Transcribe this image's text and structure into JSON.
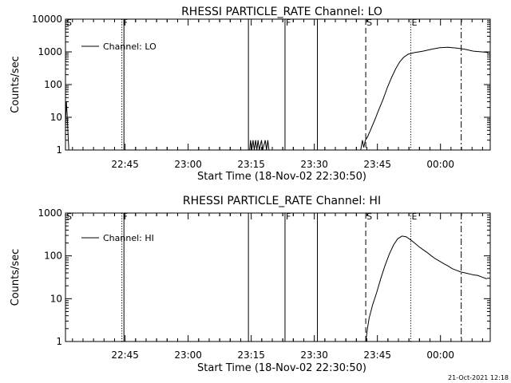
{
  "footer": {
    "timestamp": "21-Oct-2021 12:18"
  },
  "chart_data": [
    {
      "type": "line",
      "title": "RHESSI PARTICLE_RATE Channel: LO",
      "xlabel": "Start Time (18-Nov-02 22:30:50)",
      "ylabel": "Counts/sec",
      "yscale": "log",
      "ylim": [
        1,
        10000
      ],
      "ytick_labels": [
        "1",
        "10",
        "100",
        "1000",
        "10000"
      ],
      "xtick_labels": [
        "22:45",
        "23:00",
        "23:15",
        "23:30",
        "23:45",
        "00:00"
      ],
      "xtick_minutes": [
        14.17,
        29.17,
        44.17,
        59.17,
        74.17,
        89.17
      ],
      "xlim_minutes": [
        0,
        101
      ],
      "grid": false,
      "legend_position": "top-left",
      "series": [
        {
          "name": "Channel: LO",
          "points": [
            [
              0.0,
              6
            ],
            [
              0.2,
              30
            ],
            [
              0.4,
              12
            ],
            [
              0.6,
              3
            ],
            [
              0.8,
              1
            ],
            [
              43.8,
              1
            ],
            [
              44.0,
              2
            ],
            [
              44.3,
              1
            ],
            [
              44.6,
              2
            ],
            [
              44.9,
              1
            ],
            [
              45.2,
              2
            ],
            [
              45.5,
              1
            ],
            [
              45.8,
              2
            ],
            [
              46.1,
              1
            ],
            [
              46.6,
              2
            ],
            [
              46.9,
              1
            ],
            [
              47.5,
              2
            ],
            [
              47.8,
              1
            ],
            [
              48.1,
              2
            ],
            [
              48.4,
              1
            ],
            [
              70.2,
              1
            ],
            [
              70.6,
              2
            ],
            [
              70.9,
              1.2
            ],
            [
              71.3,
              2
            ],
            [
              71.8,
              2.5
            ],
            [
              72.5,
              4
            ],
            [
              73.5,
              8
            ],
            [
              74.5,
              17
            ],
            [
              75.5,
              35
            ],
            [
              76.5,
              80
            ],
            [
              77.5,
              160
            ],
            [
              78.5,
              300
            ],
            [
              79.5,
              500
            ],
            [
              80.5,
              700
            ],
            [
              81.5,
              850
            ],
            [
              83,
              950
            ],
            [
              85,
              1050
            ],
            [
              87,
              1200
            ],
            [
              89,
              1350
            ],
            [
              91,
              1380
            ],
            [
              93,
              1300
            ],
            [
              95,
              1200
            ],
            [
              97,
              1050
            ],
            [
              99,
              1000
            ],
            [
              100.5,
              960
            ]
          ]
        }
      ],
      "markers": [
        {
          "label": "S",
          "minute": 0.0,
          "style": "solid"
        },
        {
          "label": "F",
          "minute": 13.4,
          "style": "dotted"
        },
        {
          "minute": 13.9,
          "style": "solid"
        },
        {
          "minute": 43.5,
          "style": "solid"
        },
        {
          "minute": 52.2,
          "style": "solid"
        },
        {
          "label": "F",
          "minute": 52.2,
          "style": "none"
        },
        {
          "minute": 59.9,
          "style": "solid"
        },
        {
          "label": "S",
          "minute": 71.4,
          "style": "dashed"
        },
        {
          "label": "E",
          "minute": 82.1,
          "style": "dotted"
        },
        {
          "minute": 94.1,
          "style": "dashdot"
        }
      ]
    },
    {
      "type": "line",
      "title": "RHESSI PARTICLE_RATE Channel: HI",
      "xlabel": "Start Time (18-Nov-02 22:30:50)",
      "ylabel": "Counts/sec",
      "yscale": "log",
      "ylim": [
        1,
        1000
      ],
      "ytick_labels": [
        "1",
        "10",
        "100",
        "1000"
      ],
      "xtick_labels": [
        "22:45",
        "23:00",
        "23:15",
        "23:30",
        "23:45",
        "00:00"
      ],
      "xtick_minutes": [
        14.17,
        29.17,
        44.17,
        59.17,
        74.17,
        89.17
      ],
      "xlim_minutes": [
        0,
        101
      ],
      "grid": false,
      "legend_position": "top-left",
      "series": [
        {
          "name": "Channel: HI",
          "points": [
            [
              71.4,
              1
            ],
            [
              71.8,
              2
            ],
            [
              72.2,
              3.5
            ],
            [
              73,
              7
            ],
            [
              74,
              14
            ],
            [
              75,
              30
            ],
            [
              76,
              60
            ],
            [
              77,
              110
            ],
            [
              78,
              180
            ],
            [
              79,
              250
            ],
            [
              80,
              290
            ],
            [
              81,
              280
            ],
            [
              82,
              240
            ],
            [
              83,
              200
            ],
            [
              84,
              165
            ],
            [
              85,
              140
            ],
            [
              86,
              120
            ],
            [
              87,
              100
            ],
            [
              88,
              85
            ],
            [
              89,
              75
            ],
            [
              90,
              65
            ],
            [
              91,
              58
            ],
            [
              92,
              50
            ],
            [
              93,
              46
            ],
            [
              94,
              42
            ],
            [
              95,
              40
            ],
            [
              96,
              38
            ],
            [
              97,
              36
            ],
            [
              98,
              35
            ],
            [
              99,
              32
            ],
            [
              100.2,
              29
            ]
          ]
        }
      ],
      "markers": [
        {
          "label": "S",
          "minute": 0.0,
          "style": "solid"
        },
        {
          "label": "F",
          "minute": 13.4,
          "style": "dotted"
        },
        {
          "minute": 13.9,
          "style": "solid"
        },
        {
          "minute": 43.5,
          "style": "solid"
        },
        {
          "minute": 52.2,
          "style": "solid"
        },
        {
          "label": "F",
          "minute": 52.2,
          "style": "none"
        },
        {
          "minute": 59.9,
          "style": "solid"
        },
        {
          "label": "S",
          "minute": 71.4,
          "style": "dashed"
        },
        {
          "label": "E",
          "minute": 82.1,
          "style": "dotted"
        },
        {
          "minute": 94.1,
          "style": "dashdot"
        }
      ]
    }
  ]
}
